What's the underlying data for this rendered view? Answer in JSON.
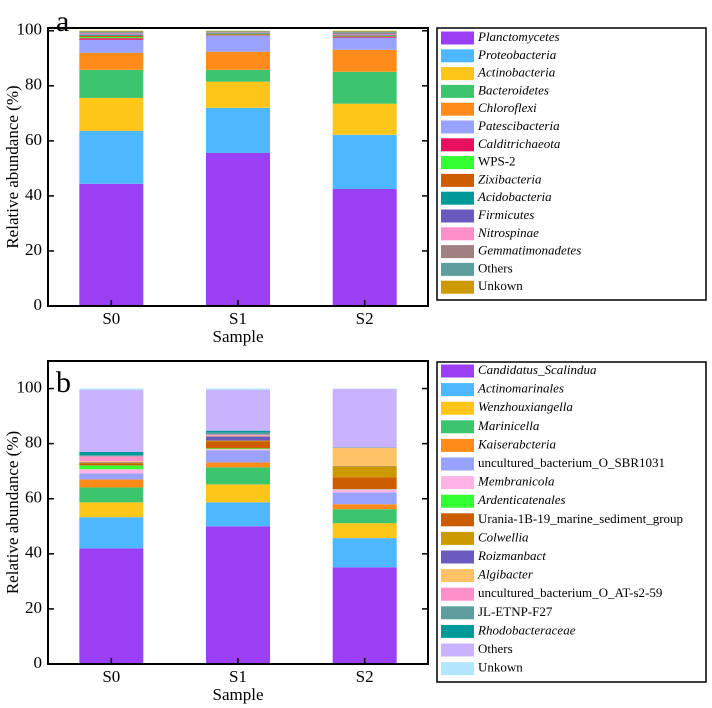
{
  "chart_data": [
    {
      "type": "stacked_bar",
      "label": "a",
      "x_label": "Sample",
      "y_label": "Relative abundance (%)",
      "categories": [
        "S0",
        "S1",
        "S2"
      ],
      "ylim": [
        0,
        101
      ],
      "yticks": [
        0,
        20,
        40,
        60,
        80,
        100
      ],
      "series": [
        {
          "name": "Planctomycetes",
          "italic": true,
          "color": "#9b3ff5",
          "values": [
            44.4,
            55.6,
            42.5
          ]
        },
        {
          "name": "Proteobacteria",
          "italic": true,
          "color": "#4db8ff",
          "values": [
            19.2,
            16.4,
            19.7
          ]
        },
        {
          "name": "Actinobacteria",
          "italic": true,
          "color": "#ffc61a",
          "values": [
            12.0,
            9.5,
            11.3
          ]
        },
        {
          "name": "Bacteroidetes",
          "italic": true,
          "color": "#3cc46e",
          "values": [
            10.2,
            4.3,
            11.6
          ]
        },
        {
          "name": "Chloroflexi",
          "italic": true,
          "color": "#ff8c1a",
          "values": [
            6.2,
            6.6,
            8.0
          ]
        },
        {
          "name": "Patescibacteria",
          "italic": true,
          "color": "#99a3ff",
          "values": [
            4.7,
            5.8,
            4.4
          ]
        },
        {
          "name": "Calditrichaeota",
          "italic": true,
          "color": "#e8115f",
          "values": [
            0.6,
            0.2,
            0.3
          ]
        },
        {
          "name": "WPS-2",
          "italic": false,
          "color": "#33ff33",
          "values": [
            0.4,
            0.2,
            0.1
          ]
        },
        {
          "name": "Zixibacteria",
          "italic": true,
          "color": "#cc5c00",
          "values": [
            0.5,
            0.3,
            0.3
          ]
        },
        {
          "name": "Acidobacteria",
          "italic": true,
          "color": "#009999",
          "values": [
            0.3,
            0.2,
            0.2
          ]
        },
        {
          "name": "Firmicutes",
          "italic": true,
          "color": "#6b5bbf",
          "values": [
            0.2,
            0.1,
            0.2
          ]
        },
        {
          "name": "Nitrospinae",
          "italic": true,
          "color": "#ff8fc8",
          "values": [
            0.3,
            0.1,
            0.2
          ]
        },
        {
          "name": "Gemmatimonadetes",
          "italic": true,
          "color": "#a08080",
          "values": [
            0.3,
            0.2,
            0.5
          ]
        },
        {
          "name": "Others",
          "italic": false,
          "color": "#5f9e9e",
          "values": [
            0.4,
            0.3,
            0.4
          ]
        },
        {
          "name": "Unkown",
          "italic": false,
          "color": "#cc9900",
          "values": [
            0.3,
            0.2,
            0.3
          ]
        }
      ]
    },
    {
      "type": "stacked_bar",
      "label": "b",
      "x_label": "Sample",
      "y_label": "Relative abundance (%)",
      "categories": [
        "S0",
        "S1",
        "S2"
      ],
      "ylim": [
        0,
        110
      ],
      "yticks": [
        0,
        20,
        40,
        60,
        80,
        100
      ],
      "series": [
        {
          "name": "Candidatus_Scalindua",
          "italic": true,
          "color": "#9b3ff5",
          "values": [
            42.0,
            50.0,
            35.1
          ]
        },
        {
          "name": "Actinomarinales",
          "italic": true,
          "color": "#4db8ff",
          "values": [
            11.3,
            8.7,
            10.6
          ]
        },
        {
          "name": "Wenzhouxiangella",
          "italic": true,
          "color": "#ffc61a",
          "values": [
            5.4,
            6.5,
            5.4
          ]
        },
        {
          "name": "Marinicella",
          "italic": true,
          "color": "#3cc46e",
          "values": [
            5.4,
            6.2,
            5.1
          ]
        },
        {
          "name": "Kaiserabcteria",
          "italic": true,
          "color": "#ff8c1a",
          "values": [
            2.9,
            1.8,
            1.8
          ]
        },
        {
          "name": "uncultured_bacterium_O_SBR1031",
          "italic": false,
          "color": "#99a3ff",
          "values": [
            2.2,
            4.3,
            4.3
          ]
        },
        {
          "name": "Membranicola",
          "italic": true,
          "color": "#ffb3e6",
          "values": [
            1.5,
            0.5,
            1.1
          ]
        },
        {
          "name": "Ardenticatenales",
          "italic": true,
          "color": "#33ff33",
          "values": [
            1.4,
            0.3,
            0.1
          ]
        },
        {
          "name": "Urania-1B-19_marine_sediment_group",
          "italic": false,
          "color": "#cc5c00",
          "values": [
            0.7,
            2.5,
            4.3
          ]
        },
        {
          "name": "Colwellia",
          "italic": true,
          "color": "#cc9900",
          "values": [
            0.3,
            0.3,
            4.0
          ]
        },
        {
          "name": "Roizmanbact",
          "italic": true,
          "color": "#6b5bbf",
          "values": [
            0.2,
            1.5,
            0.1
          ]
        },
        {
          "name": "Algibacter",
          "italic": true,
          "color": "#ffc266",
          "values": [
            0.3,
            0.3,
            6.5
          ]
        },
        {
          "name": "uncultured_bacterium_O_AT-s2-59",
          "italic": false,
          "color": "#ff8fc8",
          "values": [
            1.8,
            0.4,
            0.1
          ]
        },
        {
          "name": "JL-ETNP-F27",
          "italic": false,
          "color": "#5f9e9e",
          "values": [
            0.4,
            0.7,
            0.1
          ]
        },
        {
          "name": "Rhodobacteraceae",
          "italic": true,
          "color": "#009999",
          "values": [
            1.2,
            0.7,
            0.1
          ]
        },
        {
          "name": "Others",
          "italic": false,
          "color": "#c9b3ff",
          "values": [
            22.5,
            14.8,
            21.2
          ]
        },
        {
          "name": "Unkown",
          "italic": false,
          "color": "#b3e6ff",
          "values": [
            0.5,
            0.5,
            0.1
          ]
        }
      ]
    }
  ]
}
